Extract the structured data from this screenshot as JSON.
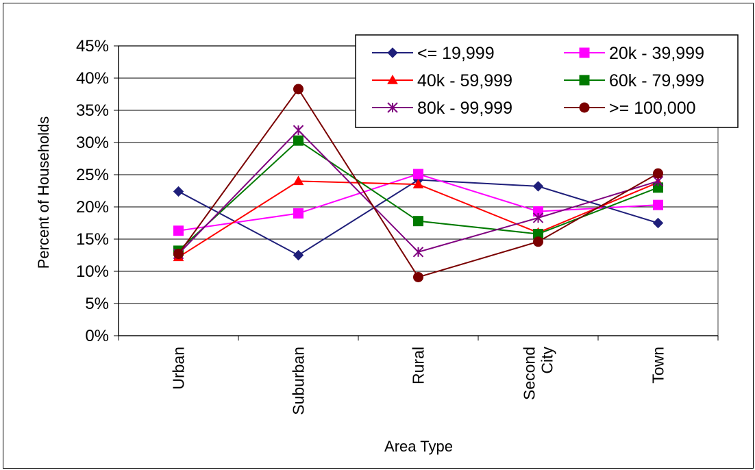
{
  "chart_data": {
    "type": "line",
    "title": "",
    "xlabel": "Area Type",
    "ylabel": "Percent of Households",
    "ylim": [
      0,
      45
    ],
    "yticks": [
      "0%",
      "5%",
      "10%",
      "15%",
      "20%",
      "25%",
      "30%",
      "35%",
      "40%",
      "45%"
    ],
    "categories": [
      [
        "Urban"
      ],
      [
        "Suburban"
      ],
      [
        "Rural"
      ],
      [
        "Second",
        "City"
      ],
      [
        "Town"
      ]
    ],
    "grid": true,
    "legend_position": "top-right",
    "series": [
      {
        "name": "<= 19,999",
        "color": "#1f1f7a",
        "marker": "diamond",
        "values": [
          22.4,
          12.5,
          24.2,
          23.2,
          17.5
        ]
      },
      {
        "name": "20k - 39,999",
        "color": "#ff00ff",
        "marker": "square",
        "values": [
          16.3,
          19.0,
          25.1,
          19.3,
          20.3
        ]
      },
      {
        "name": "40k - 59,999",
        "color": "#ff0000",
        "marker": "triangle",
        "values": [
          12.2,
          24.0,
          23.5,
          16.0,
          23.8
        ]
      },
      {
        "name": "60k - 79,999",
        "color": "#007a00",
        "marker": "square",
        "values": [
          13.2,
          30.3,
          17.8,
          15.8,
          23.0
        ]
      },
      {
        "name": "80k - 99,999",
        "color": "#7f007f",
        "marker": "star",
        "values": [
          12.7,
          31.9,
          13.0,
          18.3,
          24.0
        ]
      },
      {
        "name": ">= 100,000",
        "color": "#7a0000",
        "marker": "circle",
        "values": [
          12.7,
          38.3,
          9.1,
          14.6,
          25.2
        ]
      }
    ]
  }
}
